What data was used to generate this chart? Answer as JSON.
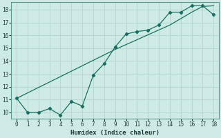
{
  "xlabel": "Humidex (Indice chaleur)",
  "bg_color": "#ceeae4",
  "grid_color": "#b8d8d2",
  "line_color": "#1a6e62",
  "xlim": [
    -0.5,
    18.5
  ],
  "ylim": [
    9.5,
    18.6
  ],
  "yticks": [
    10,
    11,
    12,
    13,
    14,
    15,
    16,
    17,
    18
  ],
  "xticks": [
    0,
    1,
    2,
    3,
    4,
    5,
    6,
    7,
    8,
    9,
    10,
    11,
    12,
    13,
    14,
    15,
    16,
    17,
    18
  ],
  "line1_x": [
    0,
    1,
    2,
    3,
    4,
    5,
    6,
    7,
    8,
    9,
    10,
    11,
    12,
    13,
    14,
    15,
    16,
    17,
    18
  ],
  "line1_y": [
    11.1,
    10.0,
    10.0,
    10.3,
    9.8,
    10.85,
    10.5,
    12.9,
    13.8,
    15.1,
    16.1,
    16.3,
    16.4,
    16.8,
    17.8,
    17.8,
    18.3,
    18.3,
    17.6
  ],
  "line2_x": [
    0,
    9,
    14,
    16,
    17,
    18
  ],
  "line2_y": [
    11.1,
    14.9,
    16.8,
    17.8,
    18.25,
    18.3
  ]
}
